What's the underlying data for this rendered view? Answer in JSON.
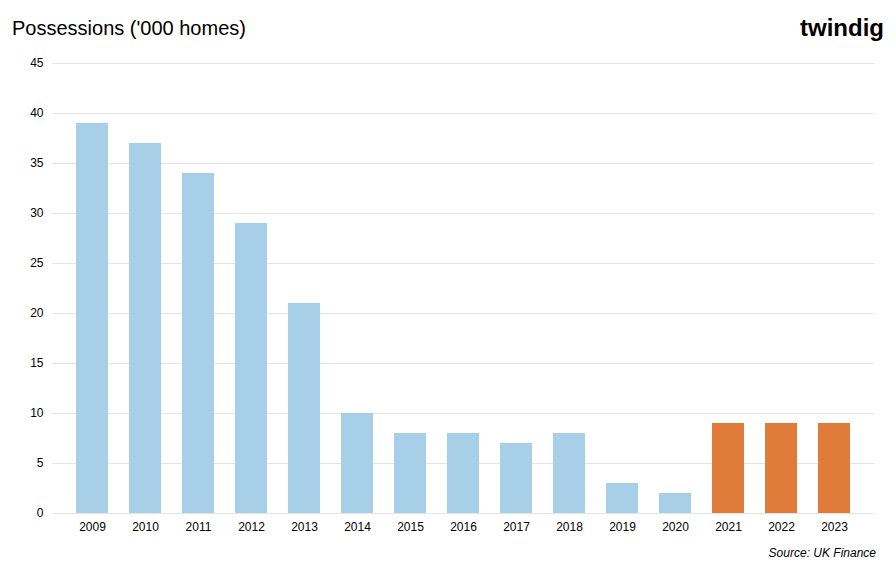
{
  "chart_data": {
    "type": "bar",
    "title": "Possessions ('000 homes)",
    "categories": [
      "2009",
      "2010",
      "2011",
      "2012",
      "2013",
      "2014",
      "2015",
      "2016",
      "2017",
      "2018",
      "2019",
      "2020",
      "2021",
      "2022",
      "2023"
    ],
    "values": [
      39,
      37,
      34,
      29,
      21,
      10,
      8,
      8,
      7,
      8,
      3,
      2,
      9,
      9,
      9
    ],
    "colors": [
      "#a8cfe8",
      "#a8cfe8",
      "#a8cfe8",
      "#a8cfe8",
      "#a8cfe8",
      "#a8cfe8",
      "#a8cfe8",
      "#a8cfe8",
      "#a8cfe8",
      "#a8cfe8",
      "#a8cfe8",
      "#a8cfe8",
      "#e07b39",
      "#e07b39",
      "#e07b39"
    ],
    "ylim": [
      0,
      45
    ],
    "yticks": [
      0,
      5,
      10,
      15,
      20,
      25,
      30,
      35,
      40,
      45
    ],
    "grid": true,
    "annotations": [
      "twindig",
      "Source: UK Finance"
    ]
  }
}
